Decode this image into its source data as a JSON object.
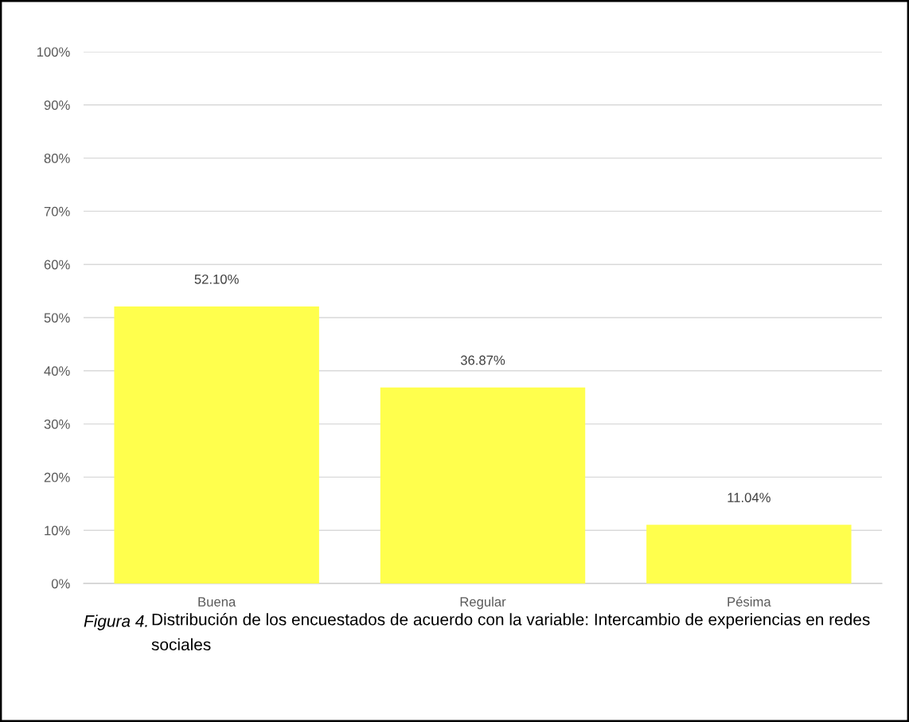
{
  "chart_data": {
    "type": "bar",
    "categories": [
      "Buena",
      "Regular",
      "Pésima"
    ],
    "values": [
      52.1,
      36.87,
      11.04
    ],
    "value_labels": [
      "52.10%",
      "36.87%",
      "11.04%"
    ],
    "color": "#ffff4d",
    "ylim": [
      0,
      100
    ],
    "yticks": [
      {
        "value": 0,
        "label": "0%"
      },
      {
        "value": 10,
        "label": "10%"
      },
      {
        "value": 20,
        "label": "20%"
      },
      {
        "value": 30,
        "label": "30%"
      },
      {
        "value": 40,
        "label": "40%"
      },
      {
        "value": 50,
        "label": "50%"
      },
      {
        "value": 60,
        "label": "60%"
      },
      {
        "value": 70,
        "label": "70%"
      },
      {
        "value": 80,
        "label": "80%"
      },
      {
        "value": 90,
        "label": "90%"
      },
      {
        "value": 100,
        "label": "100%"
      }
    ],
    "grid": "y",
    "legend": false,
    "annotations": [
      "Figura 4.",
      "Distribución de los encuestados de acuerdo con la variable: Intercambio de experiencias en redes sociales"
    ]
  }
}
